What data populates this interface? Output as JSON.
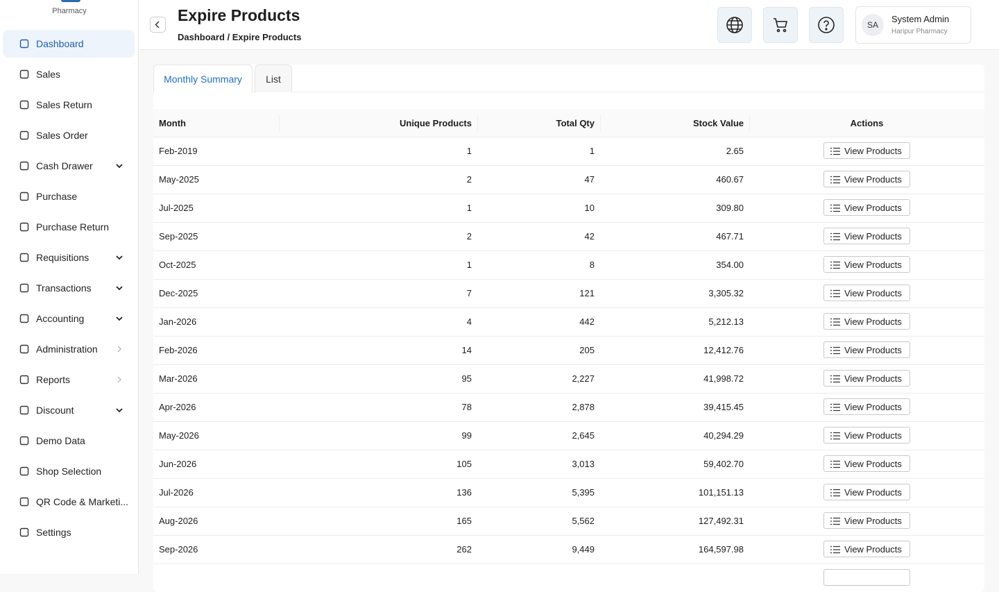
{
  "sidebar": {
    "brand": "Pharmacy",
    "items": [
      {
        "label": "Dashboard",
        "active": true
      },
      {
        "label": "Sales"
      },
      {
        "label": "Sales Return"
      },
      {
        "label": "Sales Order"
      },
      {
        "label": "Cash Drawer",
        "chevron": "down"
      },
      {
        "label": "Purchase"
      },
      {
        "label": "Purchase Return"
      },
      {
        "label": "Requisitions",
        "chevron": "down"
      },
      {
        "label": "Transactions",
        "chevron": "down"
      },
      {
        "label": "Accounting",
        "chevron": "down"
      },
      {
        "label": "Administration",
        "chevron": "right"
      },
      {
        "label": "Reports",
        "chevron": "right"
      },
      {
        "label": "Discount",
        "chevron": "down"
      },
      {
        "label": "Demo Data"
      },
      {
        "label": "Shop Selection"
      },
      {
        "label": "QR Code & Marketi..."
      },
      {
        "label": "Settings"
      }
    ]
  },
  "header": {
    "title": "Expire Products",
    "breadcrumb": "Dashboard / Expire Products",
    "user": {
      "initials": "SA",
      "name": "System Admin",
      "shop": "Haripur Pharmacy"
    }
  },
  "tabs": {
    "items": [
      "Monthly Summary",
      "List"
    ],
    "active": 0
  },
  "table": {
    "columns": [
      "Month",
      "Unique Products",
      "Total Qty",
      "Stock Value",
      "Actions"
    ],
    "action_label": "View Products",
    "rows": [
      [
        "Feb-2019",
        "1",
        "1",
        "2.65"
      ],
      [
        "May-2025",
        "2",
        "47",
        "460.67"
      ],
      [
        "Jul-2025",
        "1",
        "10",
        "309.80"
      ],
      [
        "Sep-2025",
        "2",
        "42",
        "467.71"
      ],
      [
        "Oct-2025",
        "1",
        "8",
        "354.00"
      ],
      [
        "Dec-2025",
        "7",
        "121",
        "3,305.32"
      ],
      [
        "Jan-2026",
        "4",
        "442",
        "5,212.13"
      ],
      [
        "Feb-2026",
        "14",
        "205",
        "12,412.76"
      ],
      [
        "Mar-2026",
        "95",
        "2,227",
        "41,998.72"
      ],
      [
        "Apr-2026",
        "78",
        "2,878",
        "39,415.45"
      ],
      [
        "May-2026",
        "99",
        "2,645",
        "40,294.29"
      ],
      [
        "Jun-2026",
        "105",
        "3,013",
        "59,402.70"
      ],
      [
        "Jul-2026",
        "136",
        "5,395",
        "101,151.13"
      ],
      [
        "Aug-2026",
        "165",
        "5,562",
        "127,492.31"
      ],
      [
        "Sep-2026",
        "262",
        "9,449",
        "164,597.98"
      ]
    ]
  }
}
